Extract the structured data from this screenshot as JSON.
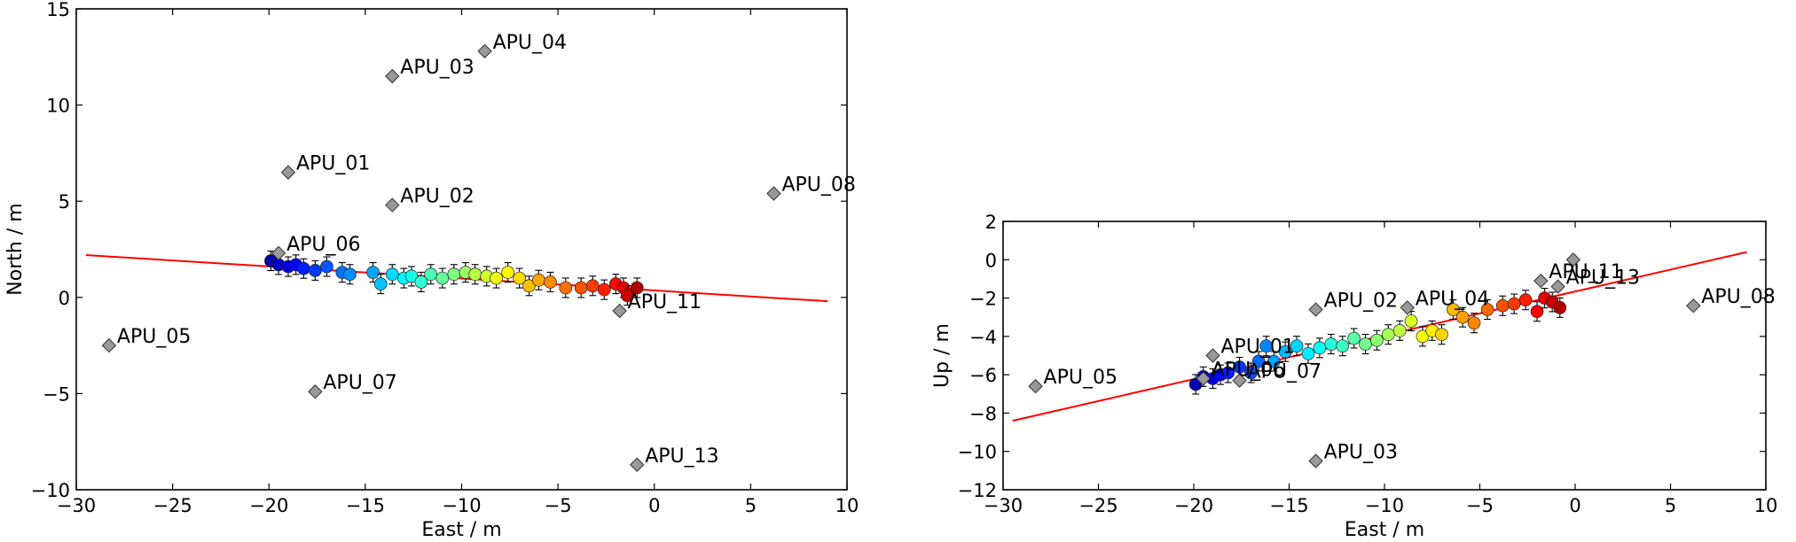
{
  "chart_data": [
    {
      "type": "scatter",
      "xlabel": "East / m",
      "ylabel": "North / m",
      "xlim": [
        -30,
        10
      ],
      "ylim": [
        -10,
        15
      ],
      "xticks": [
        -30,
        -25,
        -20,
        -15,
        -10,
        -5,
        0,
        5,
        10
      ],
      "yticks": [
        -10,
        -5,
        0,
        5,
        10,
        15
      ],
      "xtick_labels": [
        "−30",
        "−25",
        "−20",
        "−15",
        "−10",
        "−5",
        "0",
        "5",
        "10"
      ],
      "ytick_labels": [
        "−10",
        "−5",
        "0",
        "5",
        "10",
        "15"
      ],
      "grid": false,
      "fit_line": {
        "color": "#ff0000",
        "x": [
          -29.5,
          9.0
        ],
        "y": [
          2.2,
          -0.2
        ]
      },
      "stations": [
        {
          "label": "APU_01",
          "x": -19.0,
          "y": 6.5
        },
        {
          "label": "APU_02",
          "x": -13.6,
          "y": 4.8
        },
        {
          "label": "APU_03",
          "x": -13.6,
          "y": 11.5
        },
        {
          "label": "APU_04",
          "x": -8.8,
          "y": 12.8
        },
        {
          "label": "APU_05",
          "x": -28.3,
          "y": -2.5
        },
        {
          "label": "APU_06",
          "x": -19.5,
          "y": 2.3
        },
        {
          "label": "APU_07",
          "x": -17.6,
          "y": -4.9
        },
        {
          "label": "APU_08",
          "x": 6.2,
          "y": 5.4
        },
        {
          "label": "APU_11",
          "x": -1.8,
          "y": -0.7
        },
        {
          "label": "APU_13",
          "x": -0.9,
          "y": -8.7
        }
      ],
      "points": [
        {
          "x": -19.9,
          "y": 1.9
        },
        {
          "x": -19.5,
          "y": 1.7
        },
        {
          "x": -19.0,
          "y": 1.6
        },
        {
          "x": -18.6,
          "y": 1.7
        },
        {
          "x": -18.2,
          "y": 1.5
        },
        {
          "x": -17.6,
          "y": 1.4
        },
        {
          "x": -17.0,
          "y": 1.6
        },
        {
          "x": -16.2,
          "y": 1.3
        },
        {
          "x": -15.8,
          "y": 1.2
        },
        {
          "x": -14.6,
          "y": 1.3
        },
        {
          "x": -14.2,
          "y": 0.7
        },
        {
          "x": -13.6,
          "y": 1.2
        },
        {
          "x": -13.0,
          "y": 1.0
        },
        {
          "x": -12.6,
          "y": 1.1
        },
        {
          "x": -12.1,
          "y": 0.8
        },
        {
          "x": -11.6,
          "y": 1.2
        },
        {
          "x": -11.0,
          "y": 1.0
        },
        {
          "x": -10.4,
          "y": 1.2
        },
        {
          "x": -9.8,
          "y": 1.3
        },
        {
          "x": -9.3,
          "y": 1.2
        },
        {
          "x": -8.7,
          "y": 1.1
        },
        {
          "x": -8.2,
          "y": 1.0
        },
        {
          "x": -7.6,
          "y": 1.3
        },
        {
          "x": -7.0,
          "y": 1.0
        },
        {
          "x": -6.5,
          "y": 0.6
        },
        {
          "x": -6.0,
          "y": 0.9
        },
        {
          "x": -5.4,
          "y": 0.8
        },
        {
          "x": -4.6,
          "y": 0.5
        },
        {
          "x": -3.8,
          "y": 0.5
        },
        {
          "x": -3.2,
          "y": 0.6
        },
        {
          "x": -2.6,
          "y": 0.4
        },
        {
          "x": -2.0,
          "y": 0.7
        },
        {
          "x": -1.6,
          "y": 0.5
        },
        {
          "x": -1.4,
          "y": 0.1
        },
        {
          "x": -0.9,
          "y": 0.5
        }
      ]
    },
    {
      "type": "scatter",
      "xlabel": "East / m",
      "ylabel": "Up / m",
      "xlim": [
        -30,
        10
      ],
      "ylim": [
        -12,
        2
      ],
      "xticks": [
        -30,
        -25,
        -20,
        -15,
        -10,
        -5,
        0,
        5,
        10
      ],
      "yticks": [
        -12,
        -10,
        -8,
        -6,
        -4,
        -2,
        0,
        2
      ],
      "xtick_labels": [
        "−30",
        "−25",
        "−20",
        "−15",
        "−10",
        "−5",
        "0",
        "5",
        "10"
      ],
      "ytick_labels": [
        "−12",
        "−10",
        "−8",
        "−6",
        "−4",
        "−2",
        "0",
        "2"
      ],
      "grid": false,
      "fit_line": {
        "color": "#ff0000",
        "x": [
          -29.5,
          9.0
        ],
        "y": [
          -8.4,
          0.4
        ]
      },
      "stations": [
        {
          "label": "APU_01",
          "x": -19.0,
          "y": -5.0
        },
        {
          "label": "APU_02",
          "x": -13.6,
          "y": -2.6
        },
        {
          "label": "APU_03",
          "x": -13.6,
          "y": -10.5
        },
        {
          "label": "APU_04",
          "x": -8.8,
          "y": -2.5
        },
        {
          "label": "APU_05",
          "x": -28.3,
          "y": -6.6
        },
        {
          "label": "APU_06",
          "x": -19.5,
          "y": -6.2
        },
        {
          "label": "APU_07",
          "x": -17.6,
          "y": -6.3
        },
        {
          "label": "APU_08",
          "x": 6.2,
          "y": -2.4
        },
        {
          "label": "APU_11",
          "x": -1.8,
          "y": -1.1
        },
        {
          "label": "APU_13",
          "x": -0.9,
          "y": -1.4
        },
        {
          "label": "",
          "x": -0.1,
          "y": 0.0
        }
      ],
      "points": [
        {
          "x": -19.9,
          "y": -6.5
        },
        {
          "x": -19.5,
          "y": -6.1
        },
        {
          "x": -19.0,
          "y": -6.2
        },
        {
          "x": -18.6,
          "y": -6.0
        },
        {
          "x": -18.2,
          "y": -5.9
        },
        {
          "x": -17.6,
          "y": -5.6
        },
        {
          "x": -17.0,
          "y": -5.9
        },
        {
          "x": -16.6,
          "y": -5.3
        },
        {
          "x": -16.2,
          "y": -4.5
        },
        {
          "x": -15.8,
          "y": -5.3
        },
        {
          "x": -15.2,
          "y": -4.8
        },
        {
          "x": -14.6,
          "y": -4.5
        },
        {
          "x": -14.0,
          "y": -4.9
        },
        {
          "x": -13.4,
          "y": -4.6
        },
        {
          "x": -12.8,
          "y": -4.4
        },
        {
          "x": -12.2,
          "y": -4.5
        },
        {
          "x": -11.6,
          "y": -4.1
        },
        {
          "x": -11.0,
          "y": -4.4
        },
        {
          "x": -10.4,
          "y": -4.2
        },
        {
          "x": -9.8,
          "y": -3.9
        },
        {
          "x": -9.2,
          "y": -3.7
        },
        {
          "x": -8.6,
          "y": -3.2
        },
        {
          "x": -8.0,
          "y": -4.0
        },
        {
          "x": -7.5,
          "y": -3.7
        },
        {
          "x": -7.0,
          "y": -3.9
        },
        {
          "x": -6.4,
          "y": -2.6
        },
        {
          "x": -5.9,
          "y": -3.0
        },
        {
          "x": -5.3,
          "y": -3.3
        },
        {
          "x": -4.6,
          "y": -2.6
        },
        {
          "x": -3.8,
          "y": -2.4
        },
        {
          "x": -3.2,
          "y": -2.3
        },
        {
          "x": -2.6,
          "y": -2.1
        },
        {
          "x": -2.0,
          "y": -2.7
        },
        {
          "x": -1.6,
          "y": -2.0
        },
        {
          "x": -1.2,
          "y": -2.2
        },
        {
          "x": -0.8,
          "y": -2.5
        }
      ]
    }
  ]
}
